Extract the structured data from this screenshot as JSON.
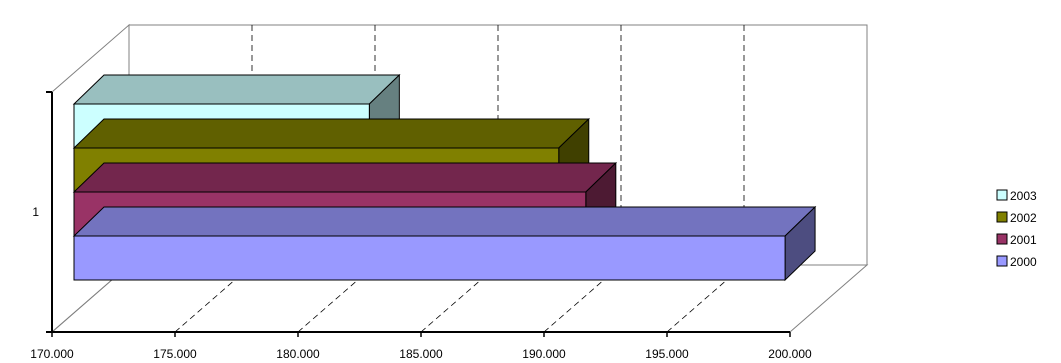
{
  "chart_data": {
    "type": "bar",
    "orientation": "horizontal",
    "style": "3d-clustered",
    "categories": [
      "1"
    ],
    "series": [
      {
        "name": "2000",
        "values": [
          199800
        ],
        "color": "#9999FF"
      },
      {
        "name": "2001",
        "values": [
          191700
        ],
        "color": "#993366"
      },
      {
        "name": "2002",
        "values": [
          190600
        ],
        "color": "#808000"
      },
      {
        "name": "2003",
        "values": [
          182900
        ],
        "color": "#CCFFFF"
      }
    ],
    "x_ticks": [
      "170.000",
      "175.000",
      "180.000",
      "185.000",
      "190.000",
      "195.000",
      "200.000"
    ],
    "xlim": [
      170000,
      200000
    ],
    "title": "",
    "xlabel": "",
    "ylabel": "",
    "grid": "dashed vertical",
    "legend": {
      "placement": "right",
      "entries": [
        "2003",
        "2002",
        "2001",
        "2000"
      ]
    }
  }
}
